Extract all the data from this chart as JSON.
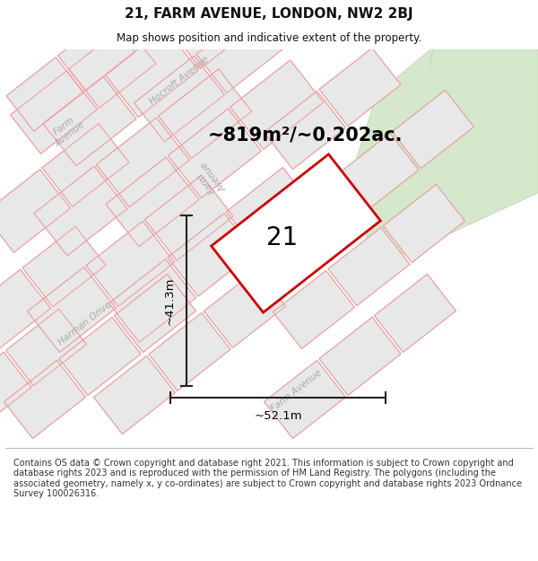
{
  "title": "21, FARM AVENUE, LONDON, NW2 2BJ",
  "subtitle": "Map shows position and indicative extent of the property.",
  "area_label": "~819m²/~0.202ac.",
  "width_label": "~52.1m",
  "height_label": "~41.3m",
  "plot_number": "21",
  "map_bg": "#f8f8f8",
  "block_fill": "#e8e8e8",
  "block_edge": "#c8c8c8",
  "plot_line_color": "#f0a0a0",
  "plot_outline_color": "#cc0000",
  "green_fill": "#d8e8d0",
  "green_edge": "#c0d4b8",
  "dim_color": "#222222",
  "text_color": "#111111",
  "street_color": "#aaaaaa",
  "footer_text": "Contains OS data © Crown copyright and database right 2021. This information is subject to Crown copyright and database rights 2023 and is reproduced with the permission of HM Land Registry. The polygons (including the associated geometry, namely x, y co-ordinates) are subject to Crown copyright and database rights 2023 Ordnance Survey 100026316."
}
